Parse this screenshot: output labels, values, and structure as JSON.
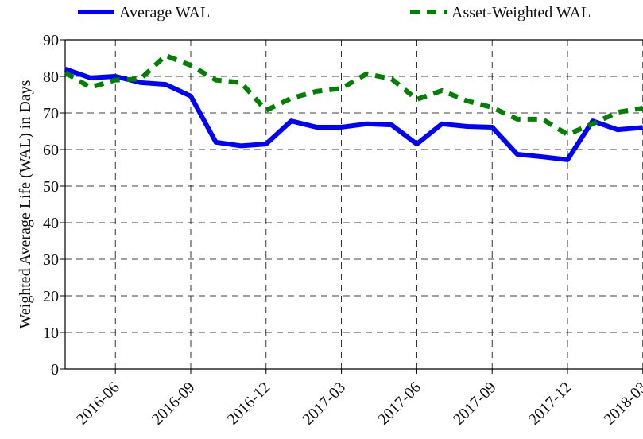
{
  "chart_data": {
    "type": "line",
    "ylabel": "Weighted Average Life (WAL) in Days",
    "x": [
      "2016-04",
      "2016-05",
      "2016-06",
      "2016-07",
      "2016-08",
      "2016-09",
      "2016-10",
      "2016-11",
      "2016-12",
      "2017-01",
      "2017-02",
      "2017-03",
      "2017-04",
      "2017-05",
      "2017-06",
      "2017-07",
      "2017-08",
      "2017-09",
      "2017-10",
      "2017-11",
      "2017-12",
      "2018-01",
      "2018-02",
      "2018-03"
    ],
    "xticks": [
      "2016-06",
      "2016-09",
      "2016-12",
      "2017-03",
      "2017-06",
      "2017-09",
      "2017-12",
      "2018-03"
    ],
    "series": [
      {
        "name": "Average WAL",
        "color": "#0000ff",
        "style": "solid",
        "values": [
          82,
          79.6,
          80,
          78.3,
          77.8,
          74.6,
          62,
          61,
          61.5,
          67.8,
          66.1,
          66.1,
          67,
          66.7,
          61.5,
          67,
          66.3,
          66.1,
          58.7,
          58,
          57.2,
          67.8,
          65.4,
          66
        ]
      },
      {
        "name": "Asset-Weighted WAL",
        "color": "#008000",
        "style": "dashed",
        "values": [
          81,
          77,
          79,
          79.3,
          85.7,
          83,
          79,
          78.3,
          70.7,
          74,
          75.9,
          76.7,
          80.7,
          79.3,
          73.7,
          76.1,
          73.3,
          71.5,
          68.3,
          68.3,
          64.1,
          67,
          70.2,
          71.3
        ]
      }
    ],
    "ylim": [
      0,
      90
    ],
    "yticks": [
      0,
      10,
      20,
      30,
      40,
      50,
      60,
      70,
      80,
      90
    ],
    "grid": true
  }
}
